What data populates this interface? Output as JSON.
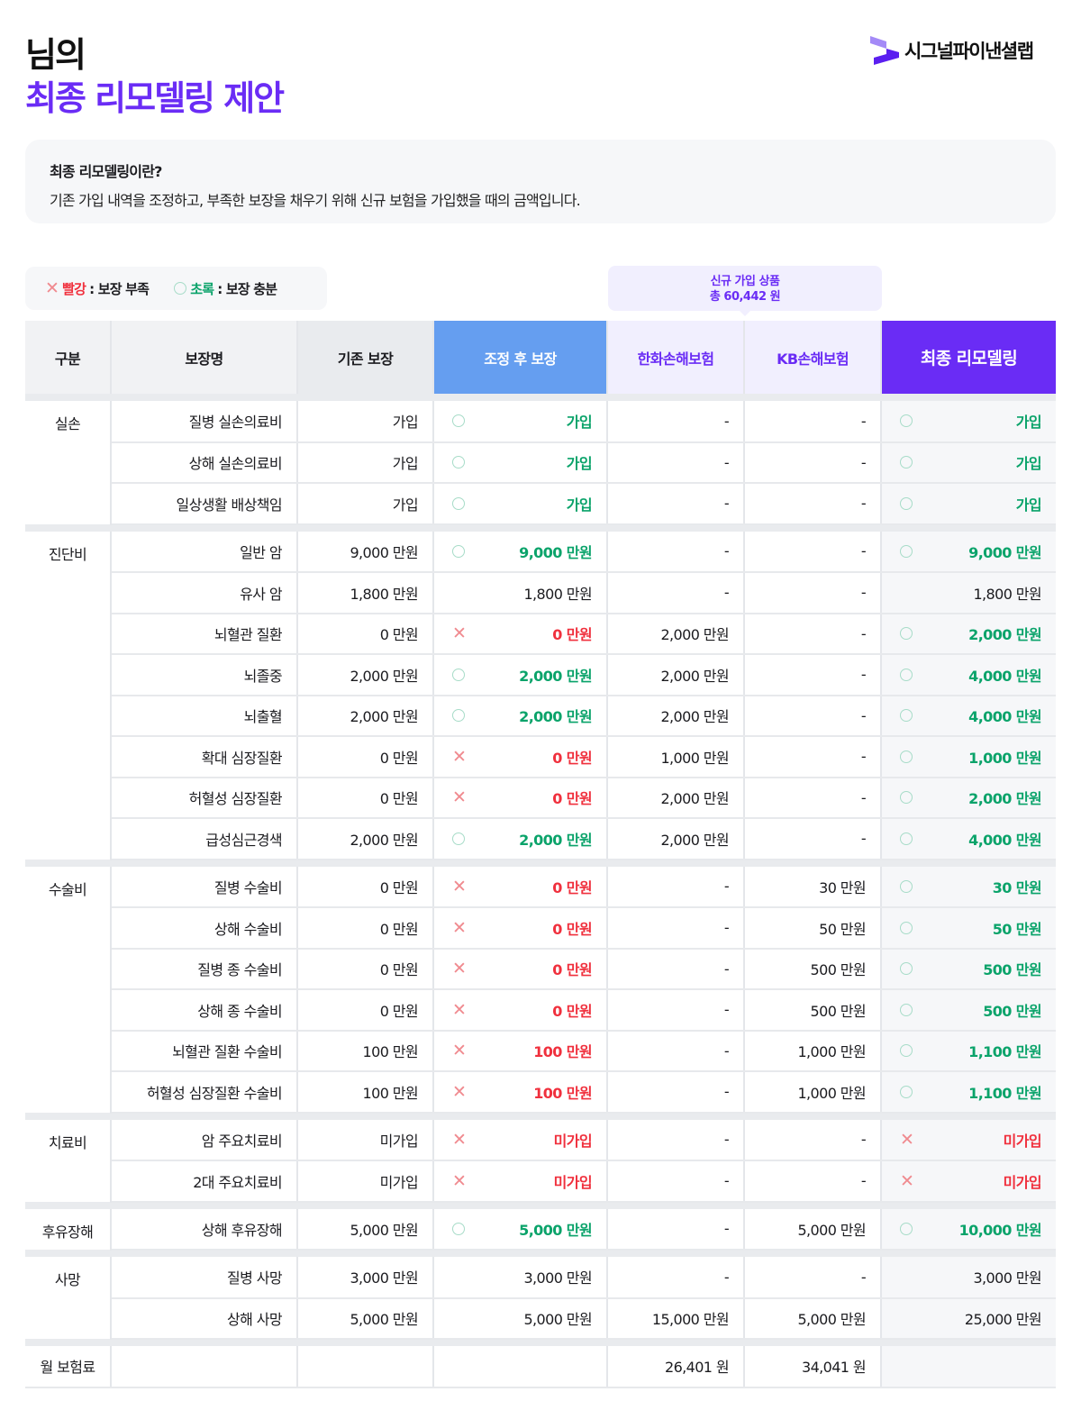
{
  "header": {
    "line1": "님의",
    "line2": "최종 리모델링 제안",
    "brand": "시그널파이낸셜랩",
    "brand_color": "#6a2cf5"
  },
  "info": {
    "title": "최종 리모델링이란?",
    "desc": "기존 가입 내역을 조정하고, 부족한 보장을 채우기 위해 신규 보험을 가입했을 때의 금액입니다."
  },
  "legend": {
    "red_word": "빨강",
    "red_desc": " : 보장 부족",
    "green_word": "초록",
    "green_desc": " : 보장 충분",
    "red_color": "#f0303d",
    "green_color": "#0aa36a"
  },
  "new_products": {
    "line1": "신규 가입 상품",
    "line2": "총 60,442 원"
  },
  "columns": [
    "구분",
    "보장명",
    "기존 보장",
    "조정 후 보장",
    "한화손해보험",
    "KB손해보험",
    "최종 리모델링"
  ],
  "groups": [
    {
      "name": "실손",
      "rows": [
        {
          "name": "질병 실손의료비",
          "existing": "가입",
          "adj_status": "o",
          "adjusted": "가입",
          "hanwha": "-",
          "kb": "-",
          "final_status": "o",
          "final": "가입"
        },
        {
          "name": "상해 실손의료비",
          "existing": "가입",
          "adj_status": "o",
          "adjusted": "가입",
          "hanwha": "-",
          "kb": "-",
          "final_status": "o",
          "final": "가입"
        },
        {
          "name": "일상생활 배상책임",
          "existing": "가입",
          "adj_status": "o",
          "adjusted": "가입",
          "hanwha": "-",
          "kb": "-",
          "final_status": "o",
          "final": "가입"
        }
      ]
    },
    {
      "name": "진단비",
      "rows": [
        {
          "name": "일반 암",
          "existing": "9,000 만원",
          "adj_status": "o",
          "adjusted": "9,000 만원",
          "hanwha": "-",
          "kb": "-",
          "final_status": "o",
          "final": "9,000 만원"
        },
        {
          "name": "유사 암",
          "existing": "1,800 만원",
          "adj_status": "",
          "adjusted": "1,800 만원",
          "hanwha": "-",
          "kb": "-",
          "final_status": "",
          "final": "1,800 만원"
        },
        {
          "name": "뇌혈관 질환",
          "existing": "0 만원",
          "adj_status": "x",
          "adjusted": "0 만원",
          "hanwha": "2,000 만원",
          "kb": "-",
          "final_status": "o",
          "final": "2,000 만원"
        },
        {
          "name": "뇌졸중",
          "existing": "2,000 만원",
          "adj_status": "o",
          "adjusted": "2,000 만원",
          "hanwha": "2,000 만원",
          "kb": "-",
          "final_status": "o",
          "final": "4,000 만원"
        },
        {
          "name": "뇌출혈",
          "existing": "2,000 만원",
          "adj_status": "o",
          "adjusted": "2,000 만원",
          "hanwha": "2,000 만원",
          "kb": "-",
          "final_status": "o",
          "final": "4,000 만원"
        },
        {
          "name": "확대 심장질환",
          "existing": "0 만원",
          "adj_status": "x",
          "adjusted": "0 만원",
          "hanwha": "1,000 만원",
          "kb": "-",
          "final_status": "o",
          "final": "1,000 만원"
        },
        {
          "name": "허혈성 심장질환",
          "existing": "0 만원",
          "adj_status": "x",
          "adjusted": "0 만원",
          "hanwha": "2,000 만원",
          "kb": "-",
          "final_status": "o",
          "final": "2,000 만원"
        },
        {
          "name": "급성심근경색",
          "existing": "2,000 만원",
          "adj_status": "o",
          "adjusted": "2,000 만원",
          "hanwha": "2,000 만원",
          "kb": "-",
          "final_status": "o",
          "final": "4,000 만원"
        }
      ]
    },
    {
      "name": "수술비",
      "rows": [
        {
          "name": "질병 수술비",
          "existing": "0 만원",
          "adj_status": "x",
          "adjusted": "0 만원",
          "hanwha": "-",
          "kb": "30 만원",
          "final_status": "o",
          "final": "30 만원"
        },
        {
          "name": "상해 수술비",
          "existing": "0 만원",
          "adj_status": "x",
          "adjusted": "0 만원",
          "hanwha": "-",
          "kb": "50 만원",
          "final_status": "o",
          "final": "50 만원"
        },
        {
          "name": "질병 종 수술비",
          "existing": "0 만원",
          "adj_status": "x",
          "adjusted": "0 만원",
          "hanwha": "-",
          "kb": "500 만원",
          "final_status": "o",
          "final": "500 만원"
        },
        {
          "name": "상해 종 수술비",
          "existing": "0 만원",
          "adj_status": "x",
          "adjusted": "0 만원",
          "hanwha": "-",
          "kb": "500 만원",
          "final_status": "o",
          "final": "500 만원"
        },
        {
          "name": "뇌혈관 질환 수술비",
          "existing": "100 만원",
          "adj_status": "x",
          "adjusted": "100 만원",
          "hanwha": "-",
          "kb": "1,000 만원",
          "final_status": "o",
          "final": "1,100 만원"
        },
        {
          "name": "허혈성 심장질환 수술비",
          "existing": "100 만원",
          "adj_status": "x",
          "adjusted": "100 만원",
          "hanwha": "-",
          "kb": "1,000 만원",
          "final_status": "o",
          "final": "1,100 만원"
        }
      ]
    },
    {
      "name": "치료비",
      "rows": [
        {
          "name": "암 주요치료비",
          "existing": "미가입",
          "adj_status": "x",
          "adjusted": "미가입",
          "hanwha": "-",
          "kb": "-",
          "final_status": "x",
          "final": "미가입"
        },
        {
          "name": "2대 주요치료비",
          "existing": "미가입",
          "adj_status": "x",
          "adjusted": "미가입",
          "hanwha": "-",
          "kb": "-",
          "final_status": "x",
          "final": "미가입"
        }
      ]
    },
    {
      "name": "후유장해",
      "rows": [
        {
          "name": "상해 후유장해",
          "existing": "5,000 만원",
          "adj_status": "o",
          "adjusted": "5,000 만원",
          "hanwha": "-",
          "kb": "5,000 만원",
          "final_status": "o",
          "final": "10,000 만원"
        }
      ]
    },
    {
      "name": "사망",
      "rows": [
        {
          "name": "질병 사망",
          "existing": "3,000 만원",
          "adj_status": "",
          "adjusted": "3,000 만원",
          "hanwha": "-",
          "kb": "-",
          "final_status": "",
          "final": "3,000 만원"
        },
        {
          "name": "상해 사망",
          "existing": "5,000 만원",
          "adj_status": "",
          "adjusted": "5,000 만원",
          "hanwha": "15,000 만원",
          "kb": "5,000 만원",
          "final_status": "",
          "final": "25,000 만원"
        }
      ]
    }
  ],
  "premium": {
    "label": "월 보험료",
    "hanwha": "26,401 원",
    "kb": "34,041 원"
  }
}
